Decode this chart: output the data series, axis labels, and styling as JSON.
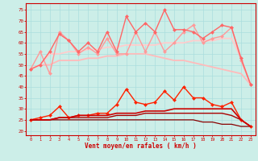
{
  "x": [
    0,
    1,
    2,
    3,
    4,
    5,
    6,
    7,
    8,
    9,
    10,
    11,
    12,
    13,
    14,
    15,
    16,
    17,
    18,
    19,
    20,
    21,
    22,
    23
  ],
  "background_color": "#cceee8",
  "grid_color": "#aadddd",
  "xlabel": "Vent moyen/en rafales ( km/h )",
  "xlabel_color": "#cc0000",
  "tick_color": "#cc0000",
  "ylim": [
    18,
    78
  ],
  "yticks": [
    20,
    25,
    30,
    35,
    40,
    45,
    50,
    55,
    60,
    65,
    70,
    75
  ],
  "lines": [
    {
      "y": [
        48,
        50,
        50,
        52,
        52,
        52,
        53,
        53,
        54,
        54,
        55,
        55,
        55,
        54,
        53,
        52,
        52,
        51,
        50,
        49,
        48,
        47,
        46,
        41
      ],
      "color": "#ffbbbb",
      "lw": 1.3,
      "marker": null,
      "zorder": 2
    },
    {
      "y": [
        48,
        56,
        46,
        65,
        61,
        55,
        58,
        55,
        62,
        55,
        55,
        65,
        56,
        65,
        56,
        60,
        65,
        68,
        60,
        62,
        63,
        67,
        52,
        41
      ],
      "color": "#ff9999",
      "lw": 1.0,
      "marker": "D",
      "ms": 2.0,
      "zorder": 3
    },
    {
      "y": [
        48,
        50,
        55,
        55,
        56,
        56,
        57,
        57,
        58,
        58,
        59,
        59,
        59,
        59,
        60,
        60,
        60,
        61,
        61,
        61,
        62,
        62,
        53,
        41
      ],
      "color": "#ffcccc",
      "lw": 1.3,
      "marker": null,
      "zorder": 2
    },
    {
      "y": [
        48,
        50,
        56,
        64,
        61,
        56,
        60,
        56,
        65,
        56,
        72,
        65,
        69,
        65,
        75,
        66,
        66,
        65,
        62,
        65,
        68,
        67,
        53,
        41
      ],
      "color": "#ff6666",
      "lw": 1.0,
      "marker": "D",
      "ms": 2.0,
      "zorder": 4
    },
    {
      "y": [
        25,
        26,
        27,
        31,
        26,
        27,
        27,
        28,
        28,
        32,
        39,
        33,
        32,
        33,
        38,
        34,
        40,
        35,
        35,
        32,
        31,
        33,
        25,
        22
      ],
      "color": "#ff2200",
      "lw": 1.0,
      "marker": "D",
      "ms": 2.0,
      "zorder": 5
    },
    {
      "y": [
        25,
        25,
        25,
        26,
        26,
        27,
        27,
        27,
        27,
        28,
        28,
        28,
        29,
        29,
        29,
        30,
        30,
        30,
        30,
        30,
        30,
        30,
        25,
        22
      ],
      "color": "#cc0000",
      "lw": 1.2,
      "marker": null,
      "zorder": 5
    },
    {
      "y": [
        25,
        25,
        25,
        26,
        26,
        26,
        26,
        26,
        26,
        27,
        27,
        27,
        28,
        28,
        28,
        28,
        28,
        28,
        28,
        28,
        28,
        27,
        25,
        22
      ],
      "color": "#aa0000",
      "lw": 1.0,
      "marker": null,
      "zorder": 4
    },
    {
      "y": [
        25,
        25,
        25,
        25,
        25,
        25,
        25,
        25,
        25,
        25,
        25,
        25,
        25,
        25,
        25,
        25,
        25,
        25,
        24,
        24,
        23,
        23,
        22,
        22
      ],
      "color": "#880000",
      "lw": 0.9,
      "marker": null,
      "zorder": 3
    }
  ]
}
